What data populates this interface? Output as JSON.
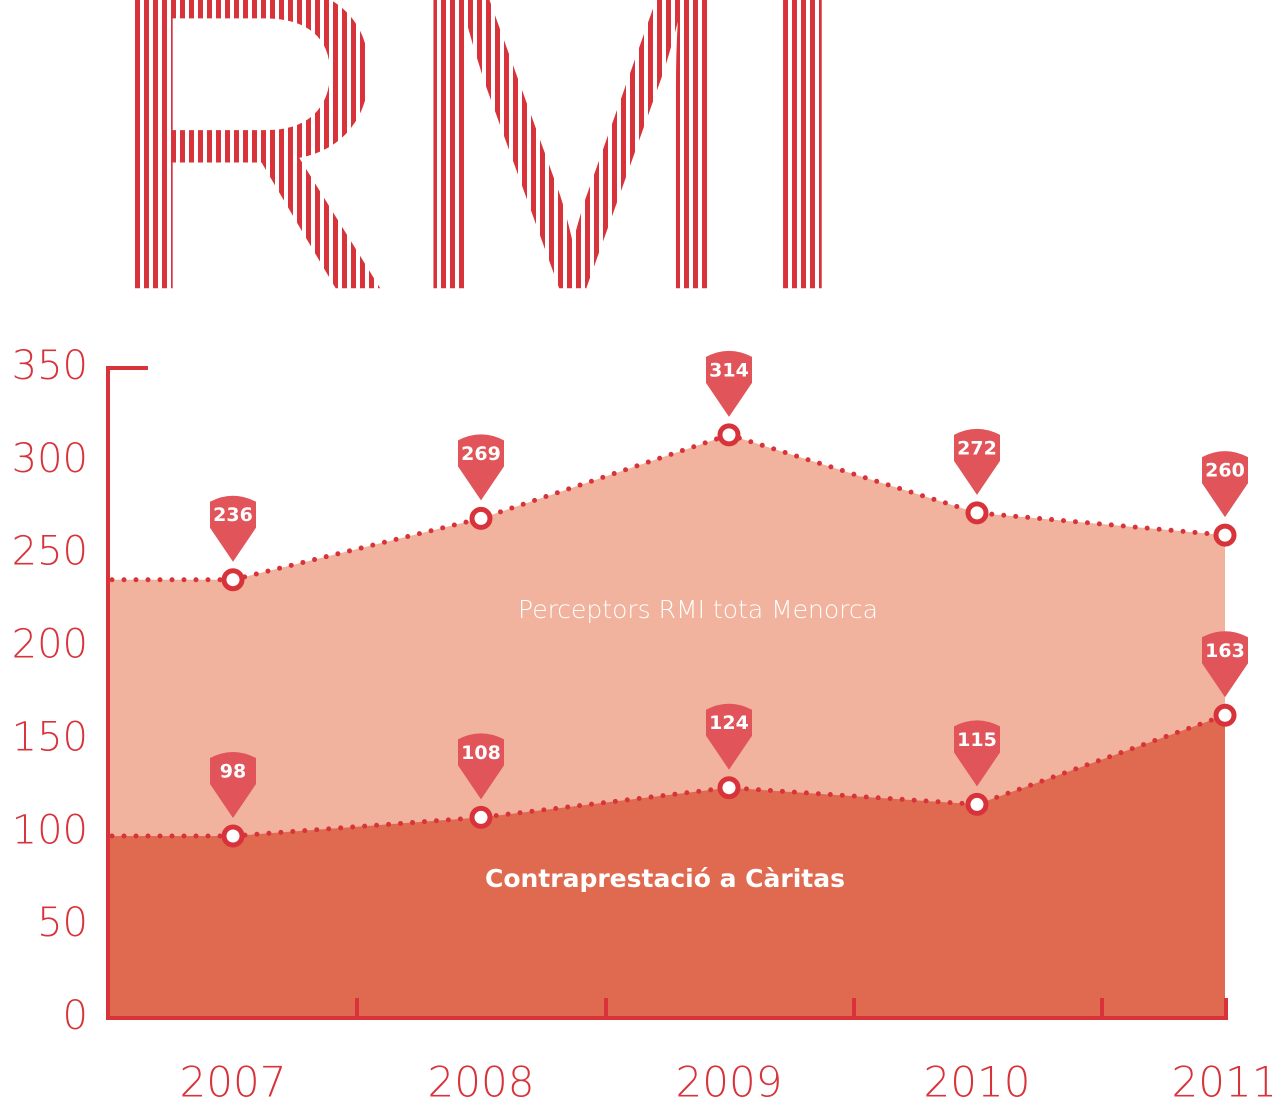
{
  "chart_data": {
    "type": "area",
    "title": "RMI",
    "categories": [
      "2007",
      "2008",
      "2009",
      "2010",
      "2011"
    ],
    "series": [
      {
        "name": "Perceptors RMI tota Menorca",
        "color": "#f1b39d",
        "values": [
          236,
          269,
          314,
          272,
          260
        ]
      },
      {
        "name": "Contraprestació a Càritas",
        "color": "#e06a50",
        "values": [
          98,
          108,
          124,
          115,
          163
        ]
      }
    ],
    "line_color": "#d8333a",
    "ylim": [
      0,
      350
    ],
    "yticks": [
      0,
      50,
      100,
      150,
      200,
      250,
      300,
      350
    ]
  }
}
